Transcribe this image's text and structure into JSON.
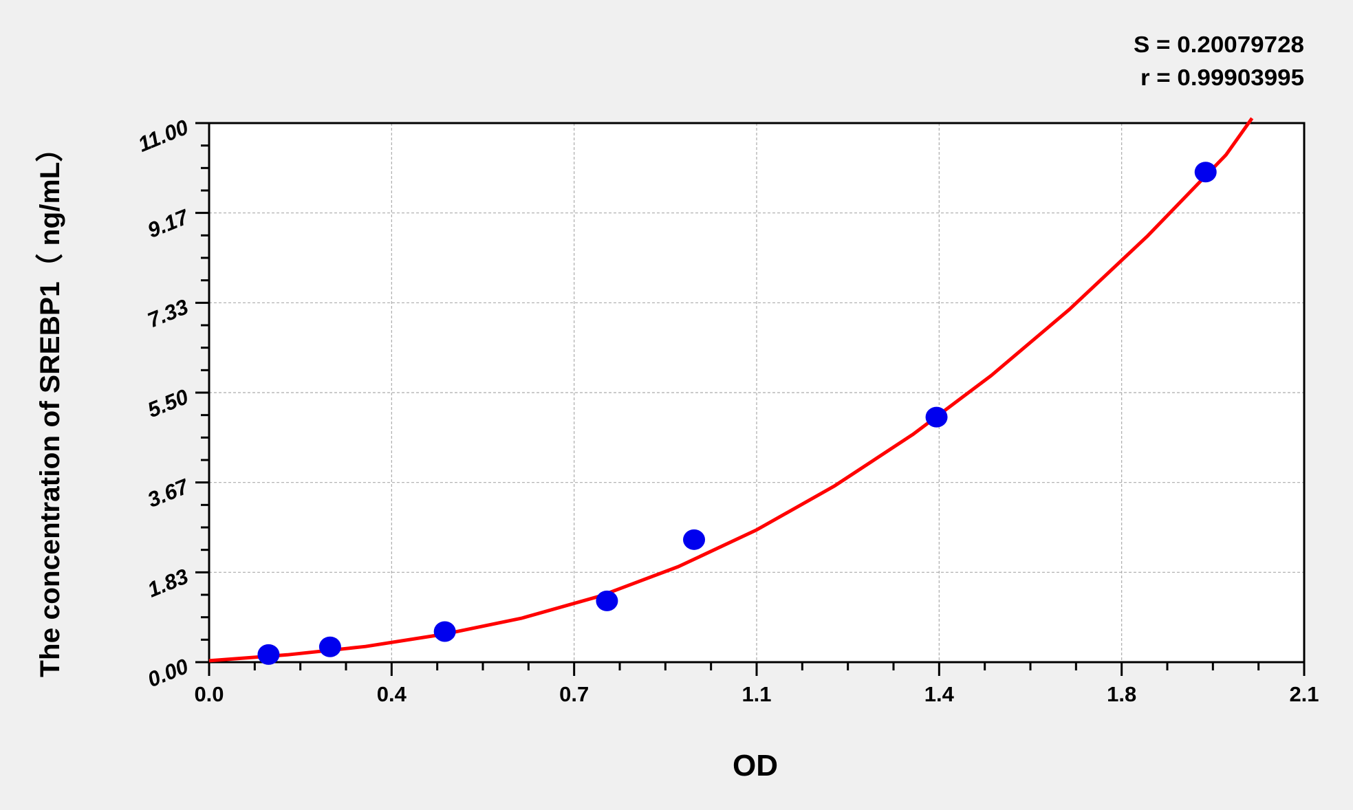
{
  "chart_data": {
    "type": "scatter",
    "title": "",
    "xlabel": "OD",
    "ylabel": "The concentration of  SREBP1（ ng/mL）",
    "xlim": [
      0.0,
      2.1
    ],
    "ylim": [
      0.0,
      11.0
    ],
    "x_ticks": [
      "0.0",
      "0.4",
      "0.7",
      "1.1",
      "1.4",
      "1.8",
      "2.1"
    ],
    "y_ticks": [
      "0.00",
      "1.83",
      "3.67",
      "5.50",
      "7.33",
      "9.17",
      "11.00"
    ],
    "grid": true,
    "stats": {
      "s_label": "S = 0.20079728",
      "r_label": "r = 0.99903995"
    },
    "points": {
      "x": [
        0.114,
        0.232,
        0.452,
        0.763,
        0.93,
        1.395,
        1.911
      ],
      "y": [
        0.156,
        0.312,
        0.625,
        1.25,
        2.5,
        5.0,
        10.0
      ],
      "color": "#0000ee"
    },
    "fit_curve": {
      "color": "#ff0000",
      "x": [
        0,
        0.15,
        0.3,
        0.45,
        0.6,
        0.75,
        0.9,
        1.05,
        1.2,
        1.35,
        1.5,
        1.65,
        1.8,
        1.95,
        2.0
      ],
      "y": [
        0.03,
        0.15,
        0.32,
        0.57,
        0.9,
        1.35,
        1.95,
        2.7,
        3.6,
        4.65,
        5.85,
        7.2,
        8.7,
        10.35,
        11.1
      ]
    }
  }
}
